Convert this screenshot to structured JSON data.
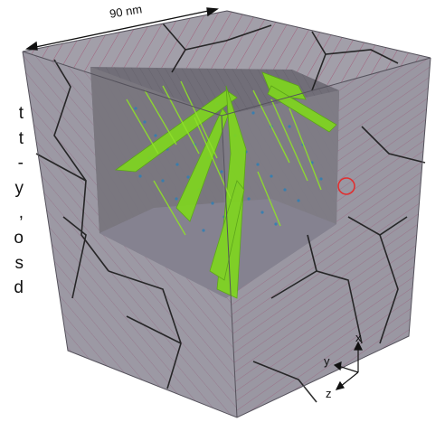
{
  "scale_bar": {
    "label": "90 nm"
  },
  "axes": {
    "x": "x",
    "y": "y",
    "z": "z"
  },
  "left_text_fragments": [
    "t",
    "t",
    "-",
    "y",
    ",",
    "o",
    "s",
    "d"
  ],
  "highlight": {
    "shape": "circle",
    "color": "#e03030"
  },
  "colors": {
    "cube_face": "#9b98a3",
    "cut_face": "#6f6c75",
    "grain_boundary": "#1a1a1a",
    "stripe": "#a0305a",
    "twin_plane": "#7fd61f",
    "dislocation_blue": "#2f7fb5"
  }
}
